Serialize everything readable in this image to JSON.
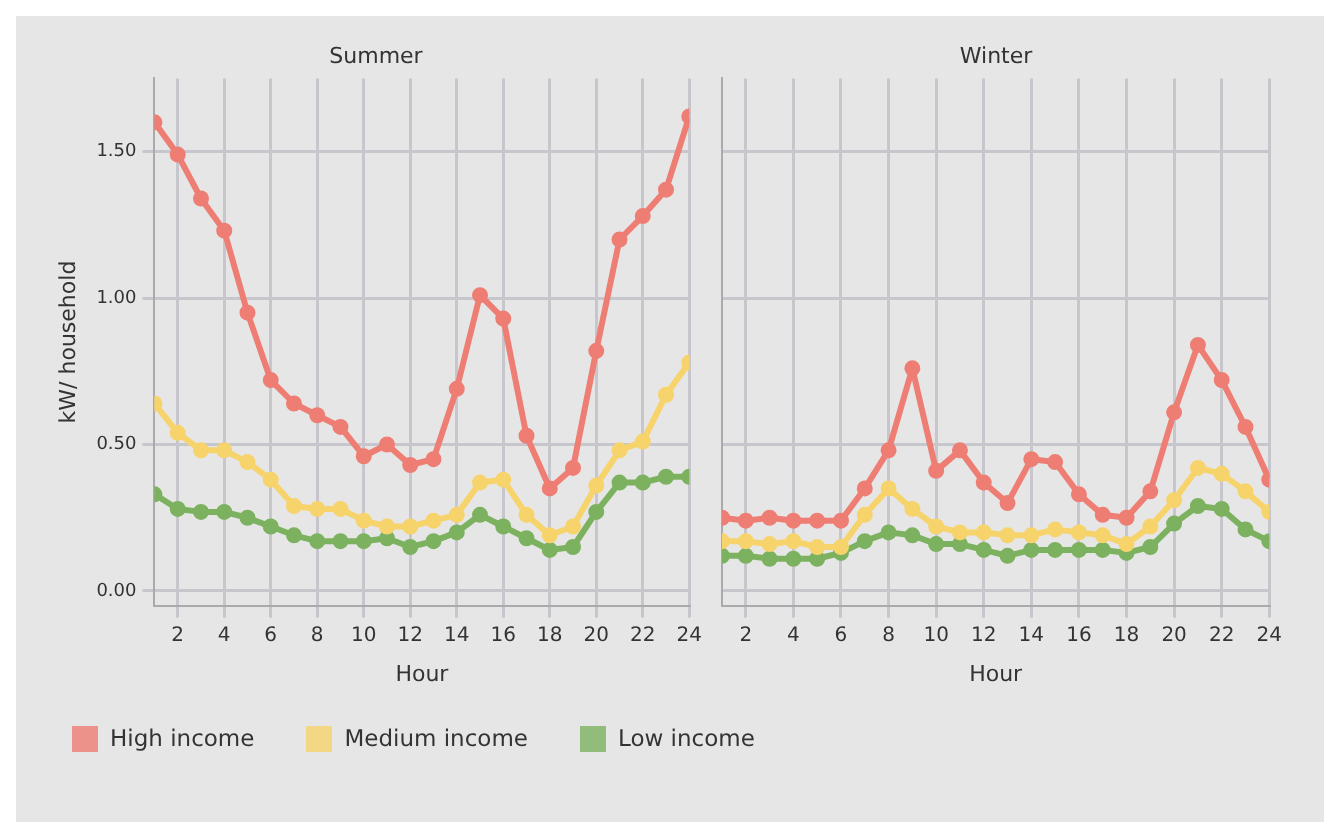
{
  "chart_data": [
    {
      "type": "line",
      "title": "Summer",
      "xlabel": "Hour",
      "ylabel": "kW/ household",
      "x": [
        1,
        2,
        3,
        4,
        5,
        6,
        7,
        8,
        9,
        10,
        11,
        12,
        13,
        14,
        15,
        16,
        17,
        18,
        19,
        20,
        21,
        22,
        23,
        24
      ],
      "xlim": [
        1,
        24
      ],
      "xticks": [
        2,
        4,
        6,
        8,
        10,
        12,
        14,
        16,
        18,
        20,
        22,
        24
      ],
      "ylim": [
        -0.05,
        1.75
      ],
      "yticks": [
        {
          "value": 0,
          "label": "0.00"
        },
        {
          "value": 0.5,
          "label": "0.50"
        },
        {
          "value": 1,
          "label": "1.00"
        },
        {
          "value": 1.5,
          "label": "1.50"
        }
      ],
      "grid": true,
      "marker": "circle",
      "legend": "bottom",
      "series": [
        {
          "name": "High income",
          "color": "#ee7d73",
          "values": [
            1.6,
            1.49,
            1.34,
            1.23,
            0.95,
            0.72,
            0.64,
            0.6,
            0.56,
            0.46,
            0.5,
            0.43,
            0.45,
            0.69,
            1.01,
            0.93,
            0.53,
            0.35,
            0.42,
            0.82,
            1.2,
            1.28,
            1.37,
            1.62
          ]
        },
        {
          "name": "Medium income",
          "color": "#f7d36b",
          "values": [
            0.64,
            0.54,
            0.48,
            0.48,
            0.44,
            0.38,
            0.29,
            0.28,
            0.28,
            0.24,
            0.22,
            0.22,
            0.24,
            0.26,
            0.37,
            0.38,
            0.26,
            0.19,
            0.22,
            0.36,
            0.48,
            0.51,
            0.67,
            0.78
          ]
        },
        {
          "name": "Low income",
          "color": "#7cb25f",
          "values": [
            0.33,
            0.28,
            0.27,
            0.27,
            0.25,
            0.22,
            0.19,
            0.17,
            0.17,
            0.17,
            0.18,
            0.15,
            0.17,
            0.2,
            0.26,
            0.22,
            0.18,
            0.14,
            0.15,
            0.27,
            0.37,
            0.37,
            0.39,
            0.39
          ]
        }
      ]
    },
    {
      "type": "line",
      "title": "Winter",
      "xlabel": "Hour",
      "x": [
        1,
        2,
        3,
        4,
        5,
        6,
        7,
        8,
        9,
        10,
        11,
        12,
        13,
        14,
        15,
        16,
        17,
        18,
        19,
        20,
        21,
        22,
        23,
        24
      ],
      "xlim": [
        1,
        24
      ],
      "xticks": [
        2,
        4,
        6,
        8,
        10,
        12,
        14,
        16,
        18,
        20,
        22,
        24
      ],
      "ylim": [
        -0.05,
        1.75
      ],
      "yticks": [
        {
          "value": 0,
          "label": null
        },
        {
          "value": 0.5,
          "label": null
        },
        {
          "value": 1,
          "label": null
        },
        {
          "value": 1.5,
          "label": null
        }
      ],
      "tick_labels": "x",
      "grid": true,
      "marker": "circle",
      "series": [
        {
          "color": "#ee7d73",
          "values": [
            0.25,
            0.24,
            0.25,
            0.24,
            0.24,
            0.24,
            0.35,
            0.48,
            0.76,
            0.41,
            0.48,
            0.37,
            0.3,
            0.45,
            0.44,
            0.33,
            0.26,
            0.25,
            0.34,
            0.61,
            0.84,
            0.72,
            0.56,
            0.38
          ]
        },
        {
          "color": "#f7d36b",
          "values": [
            0.17,
            0.17,
            0.16,
            0.17,
            0.15,
            0.15,
            0.26,
            0.35,
            0.28,
            0.22,
            0.2,
            0.2,
            0.19,
            0.19,
            0.21,
            0.2,
            0.19,
            0.16,
            0.22,
            0.31,
            0.42,
            0.4,
            0.34,
            0.27
          ]
        },
        {
          "color": "#7cb25f",
          "values": [
            0.12,
            0.12,
            0.11,
            0.11,
            0.11,
            0.13,
            0.17,
            0.2,
            0.19,
            0.16,
            0.16,
            0.14,
            0.12,
            0.14,
            0.14,
            0.14,
            0.14,
            0.13,
            0.15,
            0.23,
            0.29,
            0.28,
            0.21,
            0.17
          ]
        }
      ]
    }
  ]
}
